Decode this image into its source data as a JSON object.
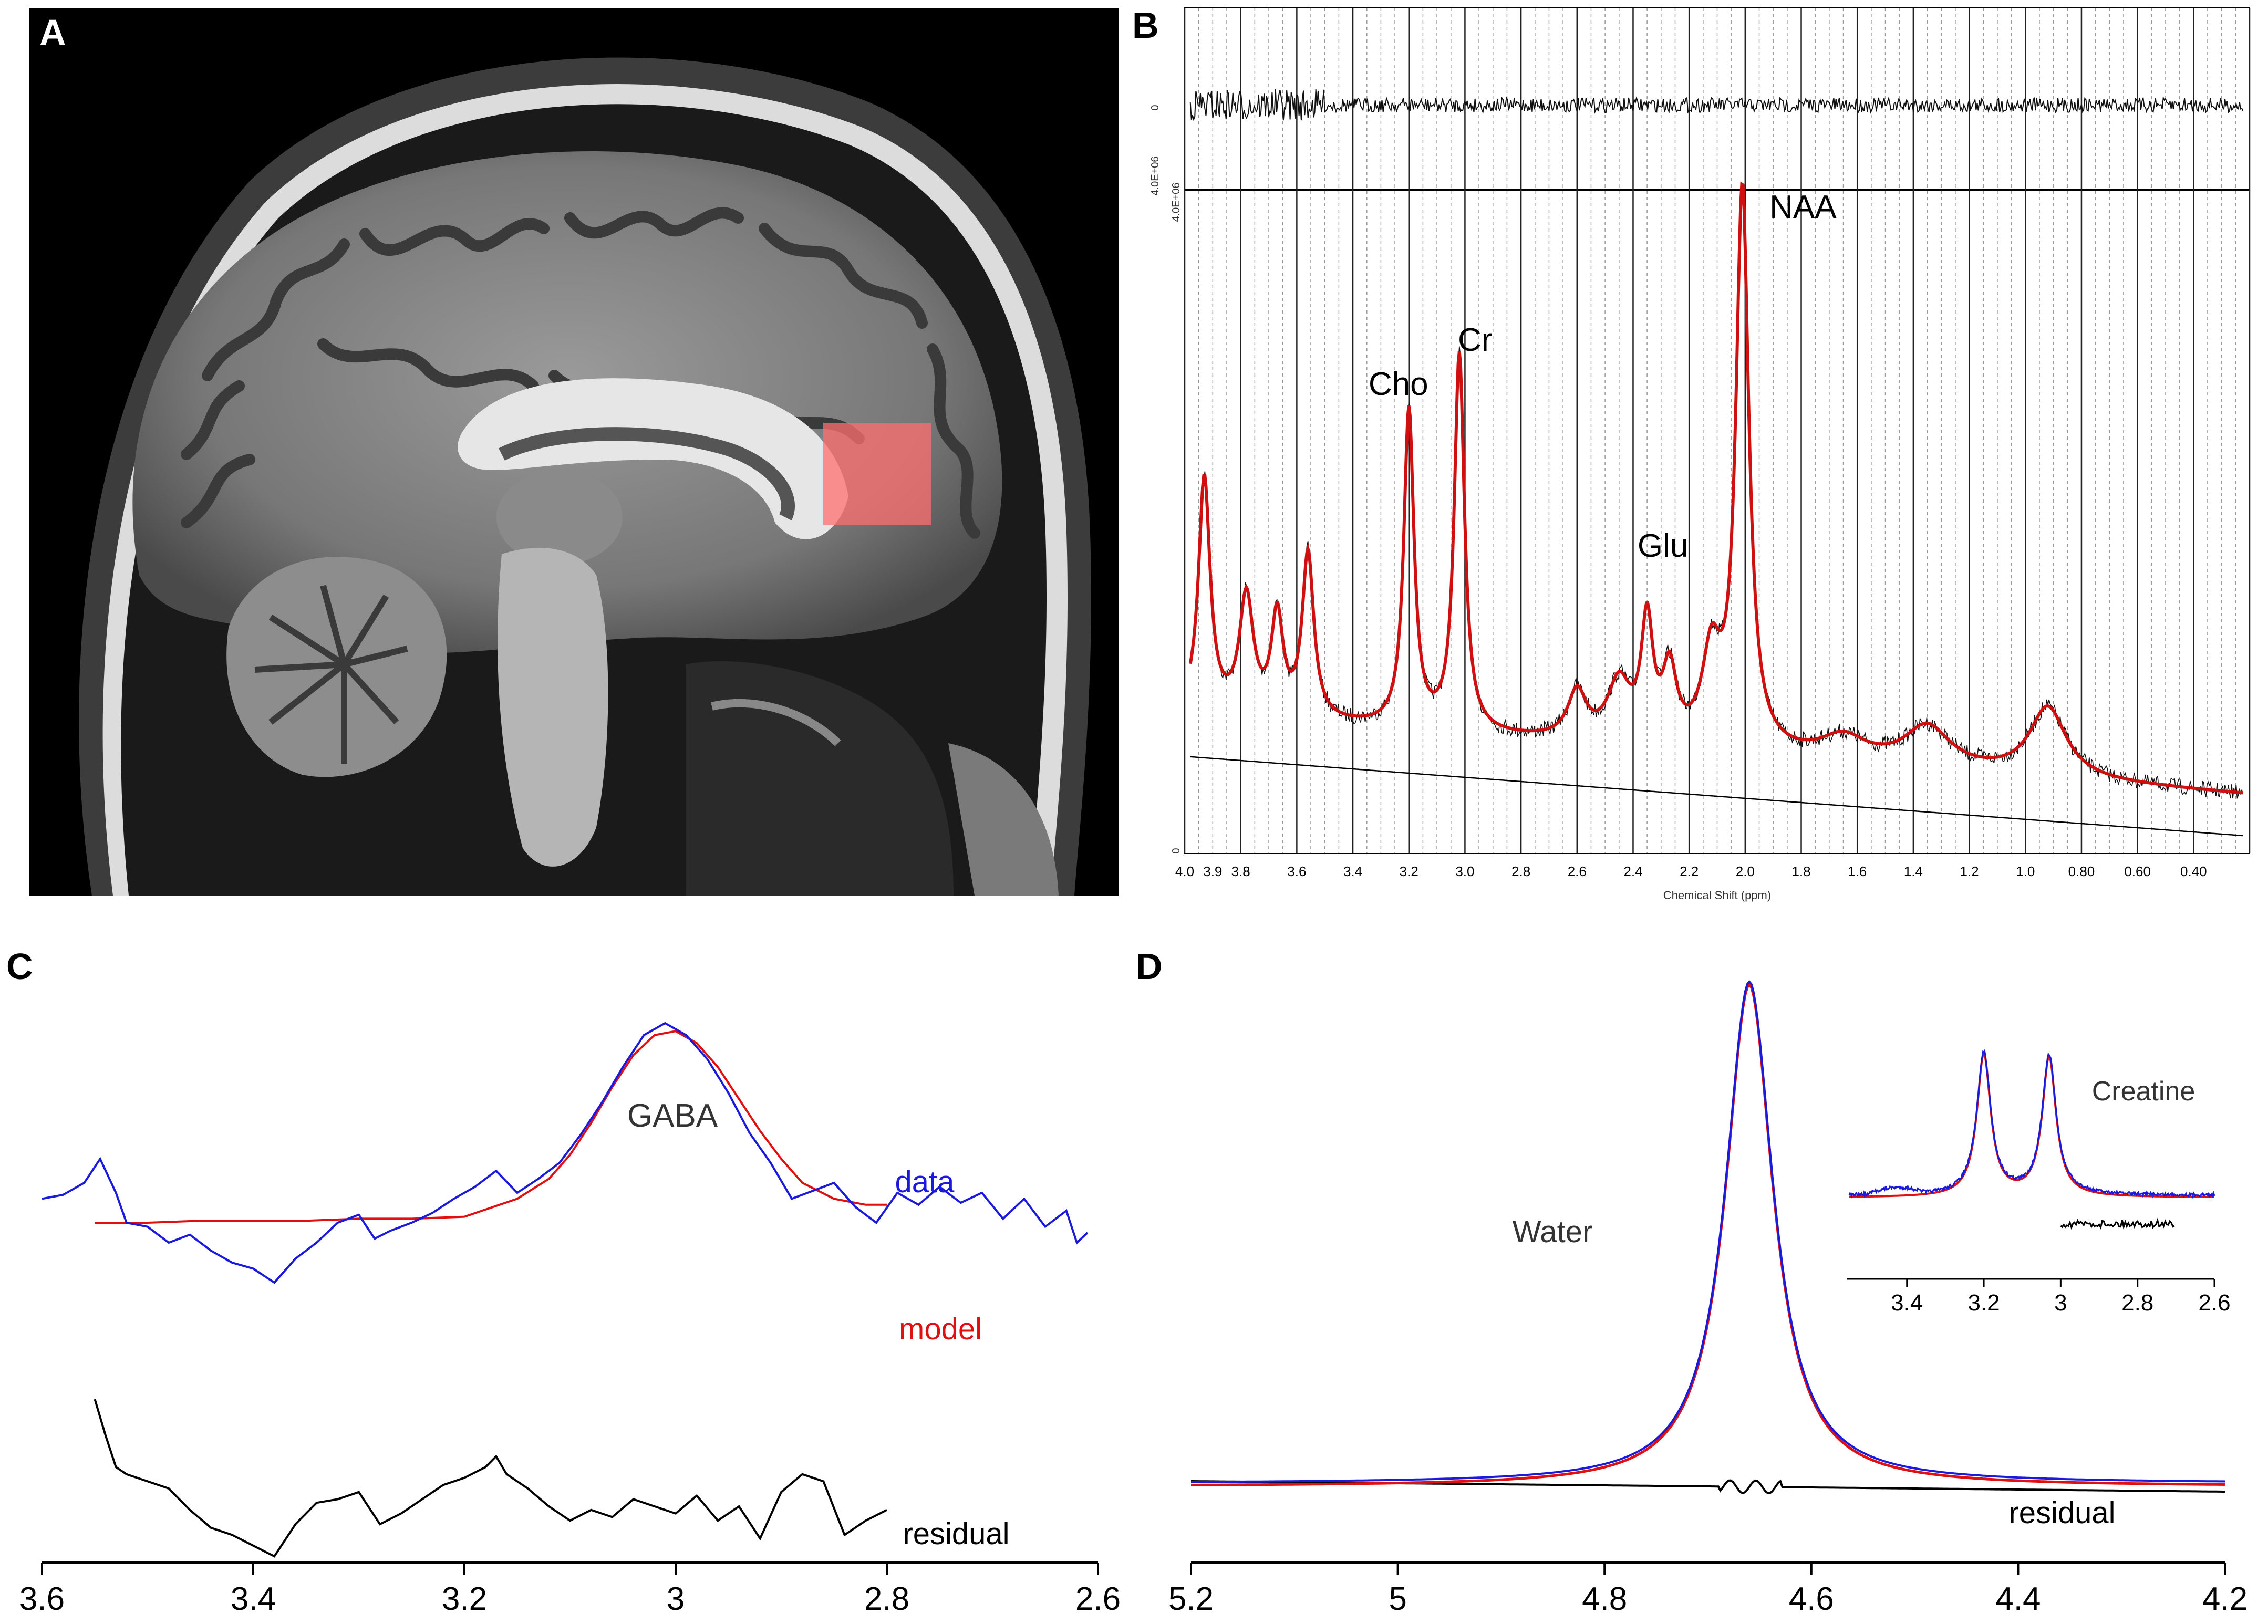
{
  "panels": {
    "a": {
      "label": "A"
    },
    "b": {
      "label": "B"
    },
    "c": {
      "label": "C"
    },
    "d": {
      "label": "D"
    }
  },
  "colors": {
    "data": "#1a1adc",
    "model": "#e01010",
    "residual": "#000000",
    "voxel": "#ff6f6f",
    "fit_b": "#d01010"
  },
  "chart_data": [
    {
      "panel": "B",
      "type": "line",
      "xlabel": "Chemical Shift (ppm)",
      "xlim": [
        4.0,
        0.2
      ],
      "x_ticks": [
        "4.0",
        "3.9",
        "3.8",
        "3.6",
        "3.4",
        "3.2",
        "3.0",
        "2.8",
        "2.6",
        "2.4",
        "2.2",
        "2.0",
        "1.8",
        "1.6",
        "1.4",
        "1.2",
        "1.0",
        "0.80",
        "0.60",
        "0.40"
      ],
      "y_tick_top": "4.0E+06",
      "y_tick_bottom": "0",
      "residual_tick_a": "0",
      "residual_tick_b": "4.0E+06",
      "peak_labels": [
        {
          "text": "NAA",
          "ppm": 2.0
        },
        {
          "text": "Cr",
          "ppm": 3.02
        },
        {
          "text": "Cho",
          "ppm": 3.2
        },
        {
          "text": "Glu",
          "ppm": 2.35
        }
      ],
      "peaks": [
        {
          "ppm": 3.93,
          "amp": 0.4,
          "w": 0.025
        },
        {
          "ppm": 3.78,
          "amp": 0.2,
          "w": 0.03
        },
        {
          "ppm": 3.67,
          "amp": 0.17,
          "w": 0.025
        },
        {
          "ppm": 3.56,
          "amp": 0.28,
          "w": 0.025
        },
        {
          "ppm": 3.2,
          "amp": 0.54,
          "w": 0.022
        },
        {
          "ppm": 3.02,
          "amp": 0.64,
          "w": 0.022
        },
        {
          "ppm": 2.6,
          "amp": 0.08,
          "w": 0.04
        },
        {
          "ppm": 2.45,
          "amp": 0.1,
          "w": 0.05
        },
        {
          "ppm": 2.35,
          "amp": 0.2,
          "w": 0.025
        },
        {
          "ppm": 2.27,
          "amp": 0.12,
          "w": 0.03
        },
        {
          "ppm": 2.12,
          "amp": 0.15,
          "w": 0.04
        },
        {
          "ppm": 2.01,
          "amp": 0.95,
          "w": 0.028
        },
        {
          "ppm": 1.65,
          "amp": 0.04,
          "w": 0.1
        },
        {
          "ppm": 1.35,
          "amp": 0.07,
          "w": 0.1
        },
        {
          "ppm": 0.92,
          "amp": 0.12,
          "w": 0.08
        }
      ]
    },
    {
      "panel": "C",
      "type": "line",
      "xlim": [
        3.6,
        2.6
      ],
      "x_ticks": [
        "3.6",
        "3.4",
        "3.2",
        "3",
        "2.8",
        "2.6"
      ],
      "peak_label": "GABA",
      "series": [
        {
          "name": "data",
          "x": [
            3.6,
            3.58,
            3.56,
            3.545,
            3.53,
            3.52,
            3.5,
            3.48,
            3.46,
            3.44,
            3.42,
            3.4,
            3.38,
            3.36,
            3.34,
            3.32,
            3.3,
            3.285,
            3.27,
            3.25,
            3.23,
            3.21,
            3.19,
            3.17,
            3.15,
            3.13,
            3.11,
            3.09,
            3.07,
            3.05,
            3.03,
            3.01,
            2.99,
            2.97,
            2.95,
            2.93,
            2.91,
            2.89,
            2.87,
            2.85,
            2.83,
            2.81,
            2.79,
            2.77,
            2.75,
            2.73,
            2.71,
            2.69,
            2.67,
            2.65,
            2.63,
            2.62,
            2.61
          ],
          "y": [
            0.52,
            0.54,
            0.6,
            0.72,
            0.55,
            0.4,
            0.38,
            0.3,
            0.34,
            0.26,
            0.2,
            0.17,
            0.1,
            0.22,
            0.3,
            0.4,
            0.44,
            0.32,
            0.36,
            0.4,
            0.45,
            0.52,
            0.58,
            0.66,
            0.55,
            0.62,
            0.7,
            0.84,
            1.0,
            1.18,
            1.34,
            1.4,
            1.34,
            1.22,
            1.05,
            0.85,
            0.7,
            0.52,
            0.56,
            0.6,
            0.48,
            0.4,
            0.55,
            0.49,
            0.58,
            0.5,
            0.55,
            0.42,
            0.52,
            0.38,
            0.46,
            0.3,
            0.35
          ]
        },
        {
          "name": "model",
          "x": [
            3.55,
            3.5,
            3.45,
            3.4,
            3.35,
            3.3,
            3.25,
            3.2,
            3.15,
            3.12,
            3.1,
            3.08,
            3.06,
            3.04,
            3.02,
            3.0,
            2.98,
            2.96,
            2.94,
            2.92,
            2.9,
            2.88,
            2.85,
            2.82,
            2.8
          ],
          "y": [
            0.4,
            0.4,
            0.41,
            0.41,
            0.41,
            0.42,
            0.42,
            0.43,
            0.52,
            0.62,
            0.74,
            0.9,
            1.08,
            1.24,
            1.34,
            1.36,
            1.3,
            1.18,
            1.02,
            0.86,
            0.72,
            0.6,
            0.52,
            0.49,
            0.49
          ]
        },
        {
          "name": "residual",
          "x": [
            3.55,
            3.54,
            3.53,
            3.52,
            3.51,
            3.5,
            3.48,
            3.46,
            3.44,
            3.42,
            3.4,
            3.38,
            3.36,
            3.34,
            3.32,
            3.3,
            3.28,
            3.26,
            3.24,
            3.22,
            3.2,
            3.18,
            3.17,
            3.16,
            3.14,
            3.12,
            3.1,
            3.08,
            3.06,
            3.04,
            3.02,
            3.0,
            2.98,
            2.96,
            2.94,
            2.92,
            2.9,
            2.88,
            2.86,
            2.84,
            2.82,
            2.8
          ],
          "y": [
            0.9,
            0.7,
            0.52,
            0.48,
            0.46,
            0.44,
            0.4,
            0.28,
            0.18,
            0.14,
            0.08,
            0.02,
            0.2,
            0.32,
            0.34,
            0.38,
            0.2,
            0.26,
            0.34,
            0.42,
            0.46,
            0.52,
            0.58,
            0.48,
            0.4,
            0.3,
            0.22,
            0.28,
            0.24,
            0.34,
            0.3,
            0.26,
            0.36,
            0.22,
            0.3,
            0.12,
            0.38,
            0.48,
            0.44,
            0.14,
            0.22,
            0.28
          ]
        }
      ]
    },
    {
      "panel": "D",
      "type": "line",
      "xlim": [
        5.2,
        4.2
      ],
      "x_ticks": [
        "5.2",
        "5",
        "4.8",
        "4.6",
        "4.4",
        "4.2"
      ],
      "peak_label": "Water",
      "residual_label": "residual",
      "water_peak": {
        "ppm": 4.66,
        "amp": 1.0,
        "width": 0.028
      },
      "inset": {
        "xlim": [
          3.55,
          2.6
        ],
        "x_ticks": [
          "3.4",
          "3.2",
          "3",
          "2.8",
          "2.6"
        ],
        "label": "Creatine",
        "peaks": [
          {
            "ppm": 3.2,
            "amp": 1.0
          },
          {
            "ppm": 3.03,
            "amp": 0.98
          }
        ]
      }
    }
  ],
  "legend_c": {
    "data": "data",
    "model": "model",
    "residual": "residual"
  }
}
